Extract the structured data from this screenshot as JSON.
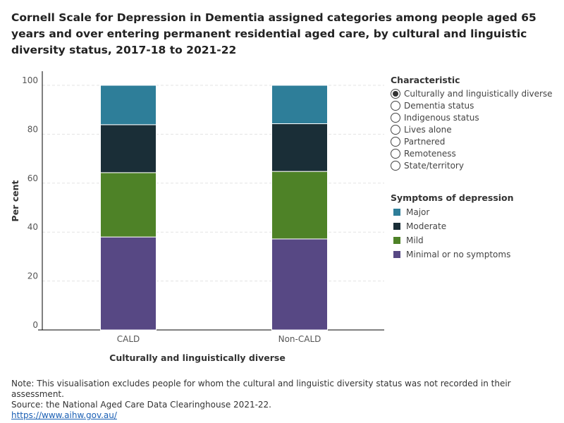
{
  "title": "Cornell Scale for Depression in Dementia assigned categories among people aged 65 years and over entering permanent residential aged care, by cultural and linguistic diversity status, 2017-18 to 2021-22",
  "characteristic": {
    "heading": "Characteristic",
    "selected": 0,
    "options": [
      "Culturally and linguistically diverse",
      "Dementia status",
      "Indigenous status",
      "Lives alone",
      "Partnered",
      "Remoteness",
      "State/territory"
    ]
  },
  "notes": {
    "note": "Note: This visualisation excludes people for whom the cultural and linguistic diversity status was not recorded in their assessment.",
    "source": "Source: the National Aged Care Data Clearinghouse 2021-22.",
    "link": "https://www.aihw.gov.au/"
  },
  "chart_data": {
    "type": "bar",
    "stacked": true,
    "xlabel": "Culturally and linguistically diverse",
    "ylabel": "Per cent",
    "ylim": [
      0,
      100
    ],
    "yticks": [
      0,
      20,
      40,
      60,
      80,
      100
    ],
    "grid": true,
    "legend_title": "Symptoms of depression",
    "legend_placement": "right",
    "categories": [
      "CALD",
      "Non-CALD"
    ],
    "series": [
      {
        "name": "Minimal or no symptoms",
        "color": "#574884",
        "values": [
          38.0,
          37.2
        ]
      },
      {
        "name": "Mild",
        "color": "#4e8227",
        "values": [
          26.3,
          27.6
        ]
      },
      {
        "name": "Moderate",
        "color": "#1a2e37",
        "values": [
          19.6,
          19.5
        ]
      },
      {
        "name": "Major",
        "color": "#2e7e99",
        "values": [
          16.1,
          15.7
        ]
      }
    ],
    "legend_order": [
      3,
      2,
      1,
      0
    ]
  }
}
